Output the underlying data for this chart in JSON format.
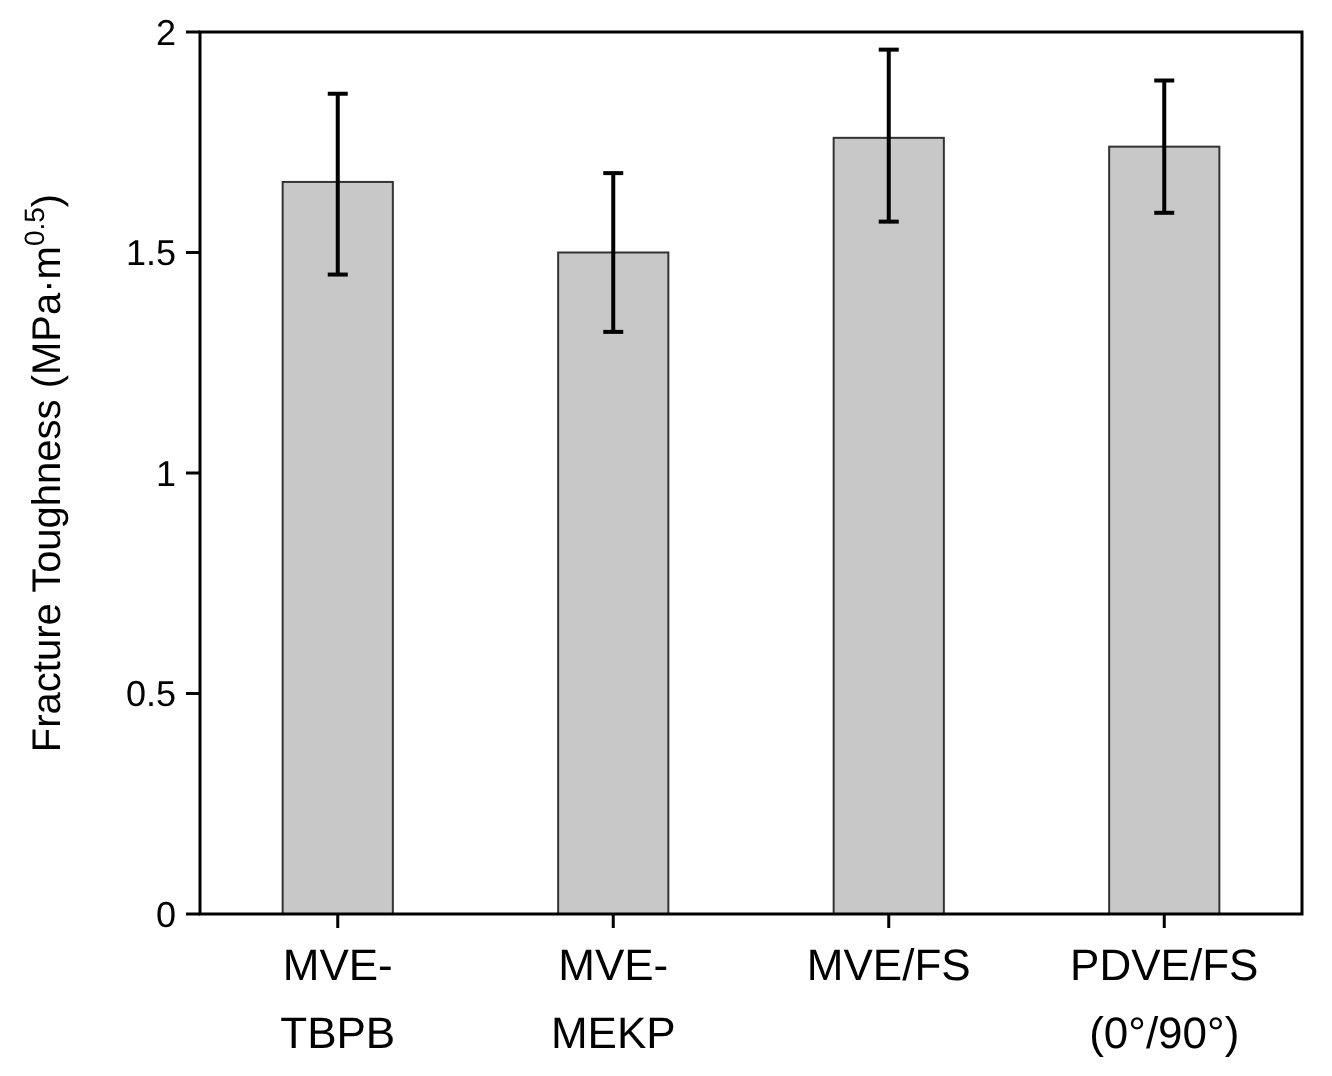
{
  "chart_data": {
    "type": "bar",
    "ylabel": "Fracture Toughness (MPa·m$^{0.5}$)",
    "categories": [
      "MVE-TBPB",
      "MVE-MEKP",
      "MVE/FS",
      "PDVE/FS (0°/90°)"
    ],
    "values": [
      1.66,
      1.5,
      1.76,
      1.74
    ],
    "errors": [
      [
        1.45,
        1.86
      ],
      [
        1.32,
        1.68
      ],
      [
        1.57,
        1.96
      ],
      [
        1.59,
        1.89
      ]
    ],
    "color": "#c8c8c8",
    "ylim": [
      0,
      2
    ],
    "yticks": [
      0,
      0.5,
      1,
      1.5,
      2
    ],
    "grid": false
  }
}
